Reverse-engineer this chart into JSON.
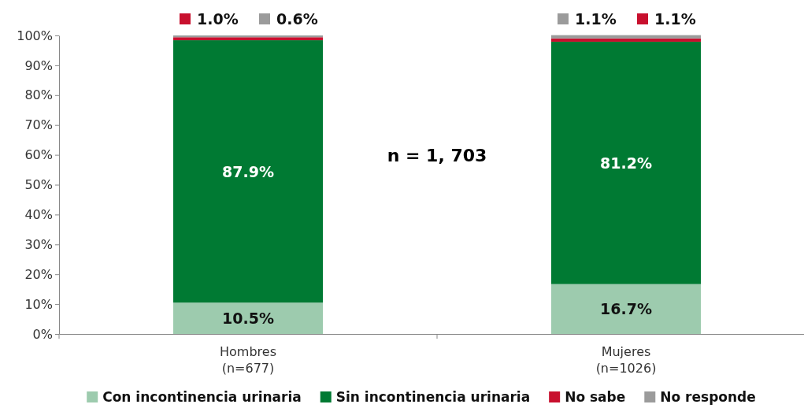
{
  "chart_data": {
    "type": "bar",
    "stacked": true,
    "categories": [
      "Hombres\n(n=677)",
      "Mujeres\n(n=1026)"
    ],
    "series": [
      {
        "name": "Con incontinencia urinaria",
        "color": "#9dcbae",
        "values": [
          10.5,
          16.7
        ],
        "value_labels": [
          "10.5%",
          "16.7%"
        ]
      },
      {
        "name": "Sin incontinencia urinaria",
        "color": "#007a33",
        "values": [
          87.9,
          81.2
        ],
        "value_labels": [
          "87.9%",
          "81.2%"
        ]
      },
      {
        "name": "No sabe",
        "color": "#c8102e",
        "values": [
          1.0,
          1.1
        ],
        "value_labels": [
          "1.0%",
          "1.1%"
        ]
      },
      {
        "name": "No responde",
        "color": "#9b9b9b",
        "values": [
          0.6,
          1.1
        ],
        "value_labels": [
          "0.6%",
          "1.1%"
        ]
      }
    ],
    "ylim": [
      0,
      100
    ],
    "yticks": [
      {
        "value": 0,
        "label": "0%"
      },
      {
        "value": 10,
        "label": "10%"
      },
      {
        "value": 20,
        "label": "20%"
      },
      {
        "value": 30,
        "label": "30%"
      },
      {
        "value": 40,
        "label": "40%"
      },
      {
        "value": 50,
        "label": "50%"
      },
      {
        "value": 60,
        "label": "60%"
      },
      {
        "value": 70,
        "label": "70%"
      },
      {
        "value": 80,
        "label": "80%"
      },
      {
        "value": 90,
        "label": "90%"
      },
      {
        "value": 100,
        "label": "100%"
      }
    ],
    "annotations": [
      "n = 1, 703"
    ],
    "legend": "bottom",
    "grid": false
  }
}
